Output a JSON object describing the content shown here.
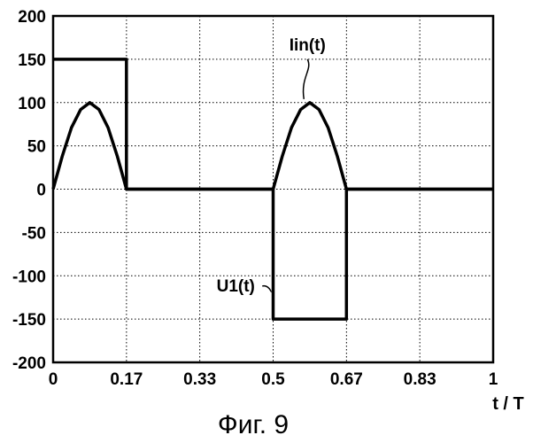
{
  "chart_data": {
    "type": "line",
    "title": "",
    "xlabel": "t / T",
    "ylabel": "",
    "xlim": [
      0,
      1
    ],
    "ylim": [
      -200,
      200
    ],
    "grid": true,
    "legend": "none",
    "x_ticks": [
      {
        "value": 0,
        "label": "0"
      },
      {
        "value": 0.1667,
        "label": "0.17"
      },
      {
        "value": 0.3333,
        "label": "0.33"
      },
      {
        "value": 0.5,
        "label": "0.5"
      },
      {
        "value": 0.6667,
        "label": "0.67"
      },
      {
        "value": 0.8333,
        "label": "0.83"
      },
      {
        "value": 1,
        "label": "1"
      }
    ],
    "y_ticks": [
      {
        "value": 200,
        "label": "200"
      },
      {
        "value": 150,
        "label": "150"
      },
      {
        "value": 100,
        "label": "100"
      },
      {
        "value": 50,
        "label": "50"
      },
      {
        "value": 0,
        "label": "0"
      },
      {
        "value": -50,
        "label": "-50"
      },
      {
        "value": -100,
        "label": "-100"
      },
      {
        "value": -150,
        "label": "-150"
      },
      {
        "value": -200,
        "label": "-200"
      }
    ],
    "series": [
      {
        "name": "U1(t)",
        "color": "#000000",
        "x": [
          0,
          0.1667,
          0.1667,
          0.5,
          0.5,
          0.6667,
          0.6667,
          1
        ],
        "y": [
          150,
          150,
          0,
          0,
          -150,
          -150,
          0,
          0
        ]
      },
      {
        "name": "Iin(t)",
        "color": "#000000",
        "x": [
          0,
          0.0208,
          0.0417,
          0.0625,
          0.0833,
          0.1042,
          0.125,
          0.1458,
          0.1667,
          0.5,
          0.5208,
          0.5417,
          0.5625,
          0.5833,
          0.6042,
          0.625,
          0.6458,
          0.6667,
          1
        ],
        "y": [
          0,
          38,
          71,
          92,
          100,
          92,
          71,
          38,
          0,
          0,
          38,
          71,
          92,
          100,
          92,
          71,
          38,
          0,
          0
        ]
      }
    ],
    "annotations": [
      {
        "text": "Iin(t)",
        "series": "Iin(t)"
      },
      {
        "text": "U1(t)",
        "series": "U1(t)"
      }
    ]
  },
  "caption": "Фиг. 9",
  "colors": {
    "line": "#000000",
    "grid": "#000000",
    "background": "#ffffff"
  }
}
